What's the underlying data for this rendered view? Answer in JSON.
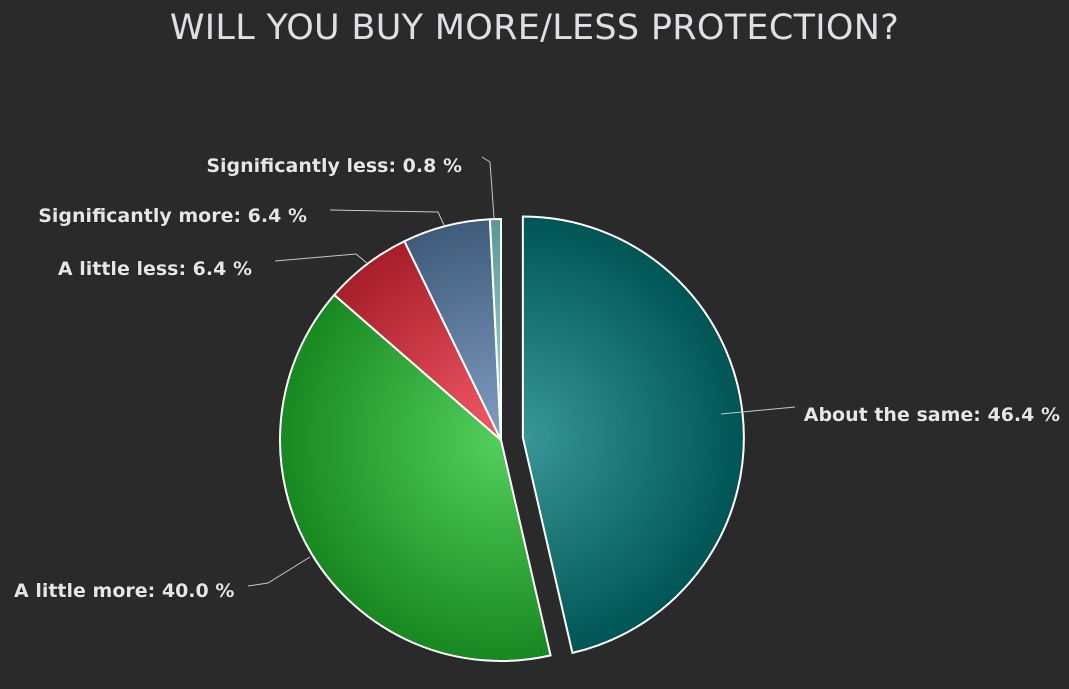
{
  "chart_data": {
    "type": "pie",
    "title": "WILL YOU BUY MORE/LESS PROTECTION?",
    "slices": [
      {
        "name": "About the same",
        "value": 46.4,
        "label": "About the same: 46.4 %",
        "color": "#007a7a",
        "sliced": true
      },
      {
        "name": "A little more",
        "value": 40.0,
        "label": "A little more: 40.0 %",
        "color": "#22c22e"
      },
      {
        "name": "A little less",
        "value": 6.4,
        "label": "A little less: 6.4 %",
        "color": "#ef2b3a"
      },
      {
        "name": "Significantly more",
        "value": 6.4,
        "label": "Significantly more: 6.4 %",
        "color": "#5b82b0"
      },
      {
        "name": "Significantly less",
        "value": 0.8,
        "label": "Significantly less: 0.8 %",
        "color": "#7fd8d4"
      }
    ],
    "legend": false
  }
}
